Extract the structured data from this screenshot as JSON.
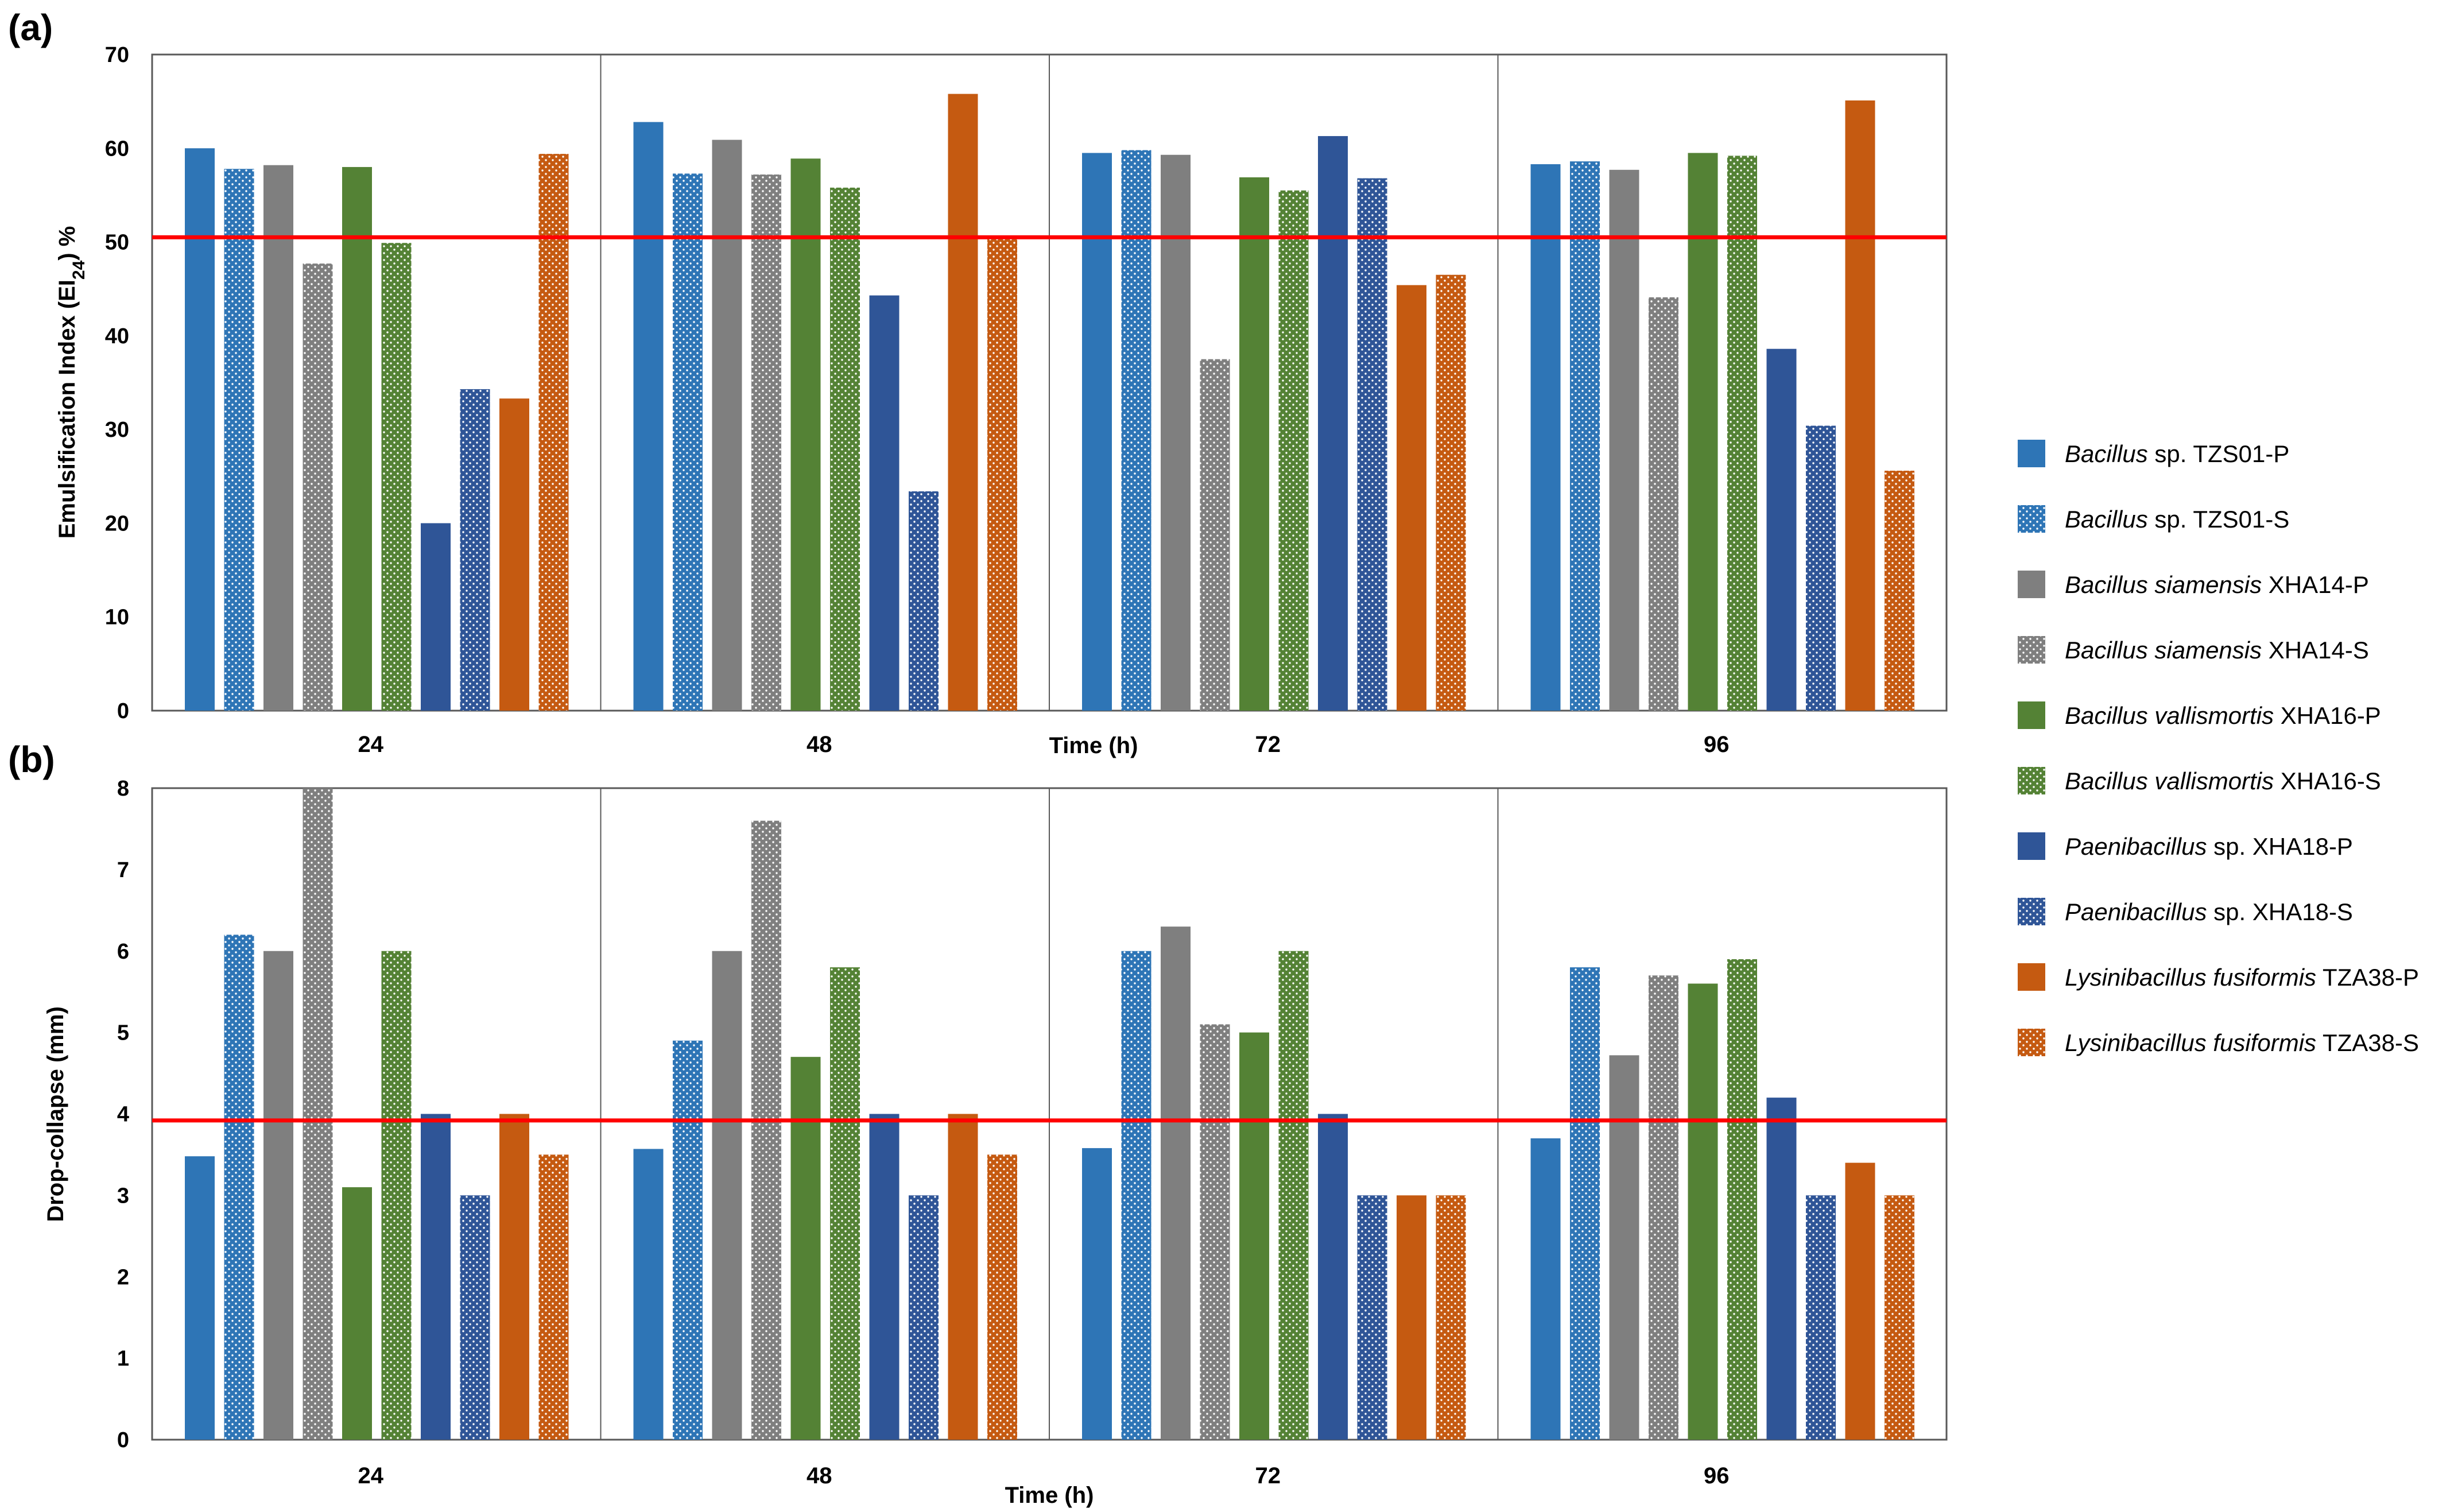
{
  "colors": {
    "blue": "#2e75b6",
    "gray": "#7f7f7f",
    "green": "#548235",
    "navy": "#2f5597",
    "orange": "#c55a11",
    "threshold": "#ff0000"
  },
  "legend": [
    {
      "genus": "Bacillus",
      "rest": " sp. TZS01-P",
      "color": "blue",
      "pattern": "solid"
    },
    {
      "genus": "Bacillus",
      "rest": " sp. TZS01-S",
      "color": "blue",
      "pattern": "dotted"
    },
    {
      "genus": "Bacillus siamensis",
      "rest": " XHA14-P",
      "color": "gray",
      "pattern": "solid"
    },
    {
      "genus": "Bacillus siamensis",
      "rest": " XHA14-S",
      "color": "gray",
      "pattern": "dotted"
    },
    {
      "genus": "Bacillus vallismortis",
      "rest": " XHA16-P",
      "color": "green",
      "pattern": "solid"
    },
    {
      "genus": "Bacillus vallismortis",
      "rest": " XHA16-S",
      "color": "green",
      "pattern": "dotted"
    },
    {
      "genus": "Paenibacillus",
      "rest": " sp. XHA18-P",
      "color": "navy",
      "pattern": "solid"
    },
    {
      "genus": "Paenibacillus",
      "rest": " sp. XHA18-S",
      "color": "navy",
      "pattern": "dotted"
    },
    {
      "genus": "Lysinibacillus fusiformis",
      "rest": " TZA38-P",
      "color": "orange",
      "pattern": "solid"
    },
    {
      "genus": "Lysinibacillus fusiformis",
      "rest": " TZA38-S",
      "color": "orange",
      "pattern": "dotted"
    }
  ],
  "chart_data": [
    {
      "panel": "(a)",
      "type": "bar",
      "categories": [
        "24",
        "48",
        "72",
        "96"
      ],
      "xlabel": "Time (h)",
      "ylabel_parts": [
        "Emulsification Index  (EI",
        "24",
        ")  %"
      ],
      "ylim": [
        0,
        70
      ],
      "yticks": [
        0,
        10,
        20,
        30,
        40,
        50,
        60,
        70
      ],
      "threshold": 50.5,
      "series": [
        {
          "name": "Bacillus sp. TZS01-P",
          "values": [
            60,
            62.8,
            59.5,
            58.3
          ]
        },
        {
          "name": "Bacillus sp. TZS01-S",
          "values": [
            57.8,
            57.3,
            59.8,
            58.6
          ]
        },
        {
          "name": "Bacillus siamensis XHA14-P",
          "values": [
            58.2,
            60.9,
            59.3,
            57.7
          ]
        },
        {
          "name": "Bacillus siamensis XHA14-S",
          "values": [
            47.7,
            57.2,
            37.5,
            44.1
          ]
        },
        {
          "name": "Bacillus vallismortis XHA16-P",
          "values": [
            58,
            58.9,
            56.9,
            59.5
          ]
        },
        {
          "name": "Bacillus vallismortis XHA16-S",
          "values": [
            49.9,
            55.8,
            55.5,
            59.2
          ]
        },
        {
          "name": "Paenibacillus sp. XHA18-P",
          "values": [
            20,
            44.3,
            61.3,
            38.6
          ]
        },
        {
          "name": "Paenibacillus sp. XHA18-S",
          "values": [
            34.3,
            23.4,
            56.8,
            30.4
          ]
        },
        {
          "name": "Lysinibacillus fusiformis TZA38-P",
          "values": [
            33.3,
            65.8,
            45.4,
            65.1
          ]
        },
        {
          "name": "Lysinibacillus fusiformis TZA38-S",
          "values": [
            59.4,
            50.5,
            46.5,
            25.6
          ]
        }
      ]
    },
    {
      "panel": "(b)",
      "type": "bar",
      "categories": [
        "24",
        "48",
        "72",
        "96"
      ],
      "xlabel": "Time (h)",
      "ylabel": "Drop-collapse  (mm)",
      "ylim": [
        0,
        8
      ],
      "yticks": [
        0,
        1,
        2,
        3,
        4,
        5,
        6,
        7,
        8
      ],
      "threshold": 3.92,
      "series": [
        {
          "name": "Bacillus sp. TZS01-P",
          "values": [
            3.48,
            3.57,
            3.58,
            3.7
          ]
        },
        {
          "name": "Bacillus sp. TZS01-S",
          "values": [
            6.2,
            4.9,
            6.0,
            5.8
          ]
        },
        {
          "name": "Bacillus siamensis XHA14-P",
          "values": [
            6.0,
            6.0,
            6.3,
            4.72
          ]
        },
        {
          "name": "Bacillus siamensis XHA14-S",
          "values": [
            8.0,
            7.6,
            5.1,
            5.7
          ]
        },
        {
          "name": "Bacillus vallismortis XHA16-P",
          "values": [
            3.1,
            4.7,
            5.0,
            5.6
          ]
        },
        {
          "name": "Bacillus vallismortis XHA16-S",
          "values": [
            6.0,
            5.8,
            6.0,
            5.9
          ]
        },
        {
          "name": "Paenibacillus sp. XHA18-P",
          "values": [
            4.0,
            4.0,
            4.0,
            4.2
          ]
        },
        {
          "name": "Paenibacillus sp. XHA18-S",
          "values": [
            3.0,
            3.0,
            3.0,
            3.0
          ]
        },
        {
          "name": "Lysinibacillus fusiformis TZA38-P",
          "values": [
            4.0,
            4.0,
            3.0,
            3.4
          ]
        },
        {
          "name": "Lysinibacillus fusiformis TZA38-S",
          "values": [
            3.5,
            3.5,
            3.0,
            3.0
          ]
        }
      ]
    }
  ]
}
